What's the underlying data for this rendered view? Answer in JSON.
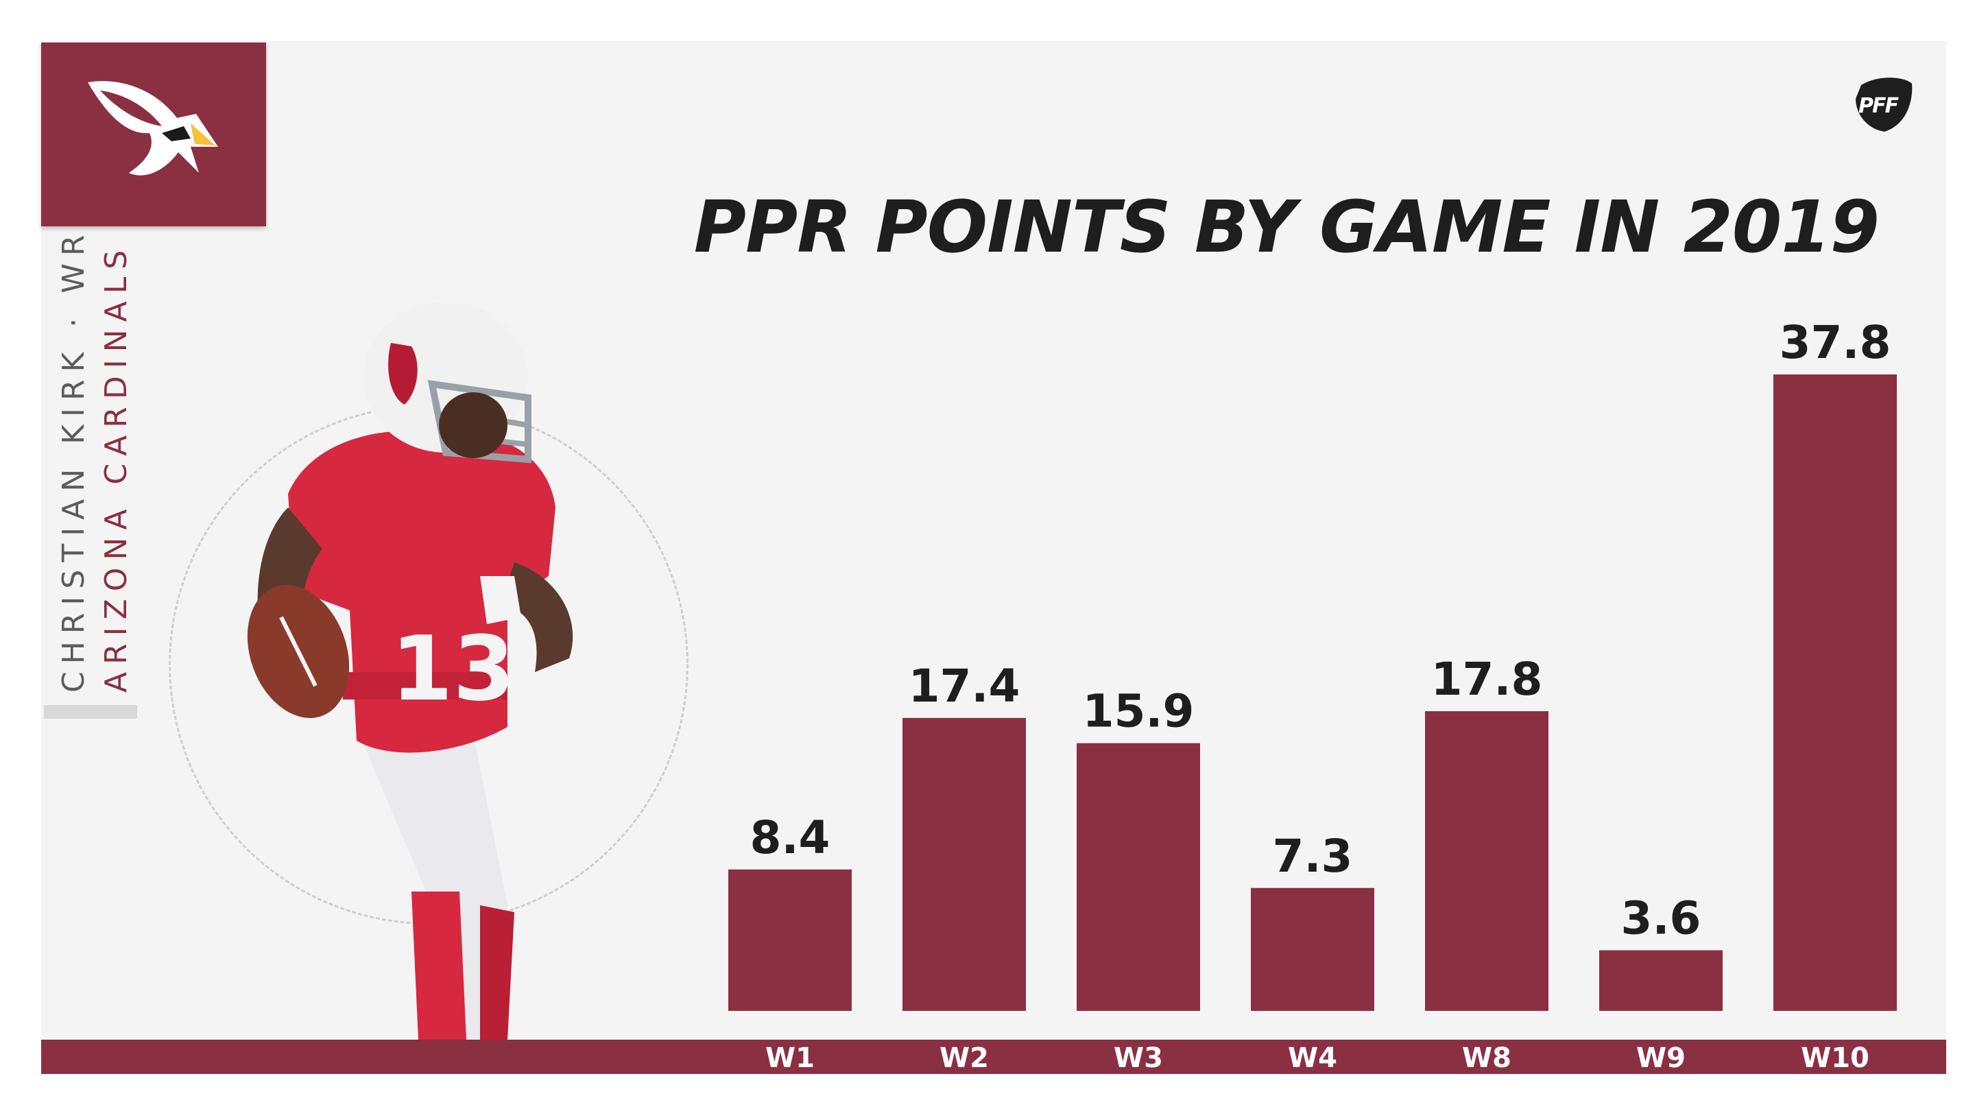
{
  "team": {
    "name": "ARIZONA CARDINALS",
    "logo_icon": "cardinal-head-icon",
    "color": "#8b2f42"
  },
  "player": {
    "name_position": "CHRISTIAN KIRK · WR",
    "jersey_number": "13"
  },
  "brand": {
    "logo_text": "PFF"
  },
  "chart_data": {
    "type": "bar",
    "title": "PPR POINTS BY GAME IN 2019",
    "categories": [
      "W1",
      "W2",
      "W3",
      "W4",
      "W8",
      "W9",
      "W10"
    ],
    "values": [
      8.4,
      17.4,
      15.9,
      7.3,
      17.8,
      3.6,
      37.8
    ],
    "value_labels": [
      "8.4",
      "17.4",
      "15.9",
      "7.3",
      "17.8",
      "3.6",
      "37.8"
    ],
    "ylim": [
      0,
      37.8
    ],
    "xlabel": "",
    "ylabel": "",
    "grid": false,
    "bar_color": "#8b2f42",
    "label_color": "#1e1e1e",
    "category_label_color": "#ffffff"
  }
}
